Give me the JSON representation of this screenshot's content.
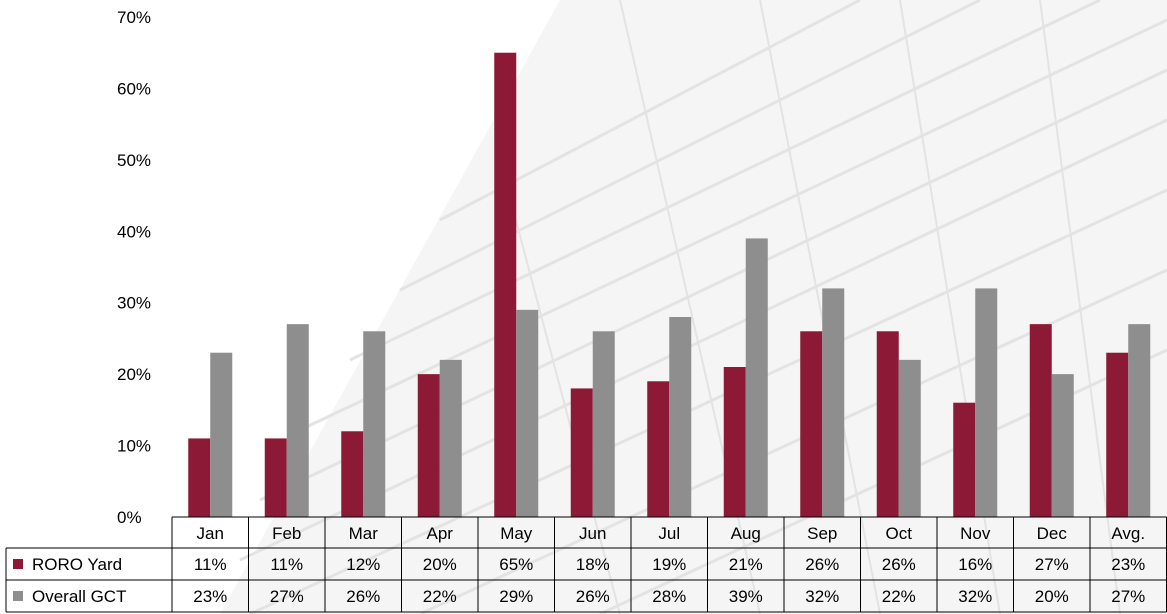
{
  "chart_data": {
    "type": "bar",
    "categories": [
      "Jan",
      "Feb",
      "Mar",
      "Apr",
      "May",
      "Jun",
      "Jul",
      "Aug",
      "Sep",
      "Oct",
      "Nov",
      "Dec",
      "Avg."
    ],
    "series": [
      {
        "name": "RORO Yard",
        "color": "#8c1a37",
        "values": [
          11,
          11,
          12,
          20,
          65,
          18,
          19,
          21,
          26,
          26,
          16,
          27,
          23
        ],
        "labels": [
          "11%",
          "11%",
          "12%",
          "20%",
          "65%",
          "18%",
          "19%",
          "21%",
          "26%",
          "26%",
          "16%",
          "27%",
          "23%"
        ]
      },
      {
        "name": "Overall GCT",
        "color": "#8e8e8e",
        "values": [
          23,
          27,
          26,
          22,
          29,
          26,
          28,
          39,
          32,
          22,
          32,
          20,
          27
        ],
        "labels": [
          "23%",
          "27%",
          "26%",
          "22%",
          "29%",
          "26%",
          "28%",
          "39%",
          "32%",
          "22%",
          "32%",
          "20%",
          "27%"
        ]
      }
    ],
    "ylim": [
      0,
      70
    ],
    "yticks": [
      "0%",
      "10%",
      "20%",
      "30%",
      "40%",
      "50%",
      "60%",
      "70%"
    ],
    "grid": false,
    "legend": "data-table"
  }
}
